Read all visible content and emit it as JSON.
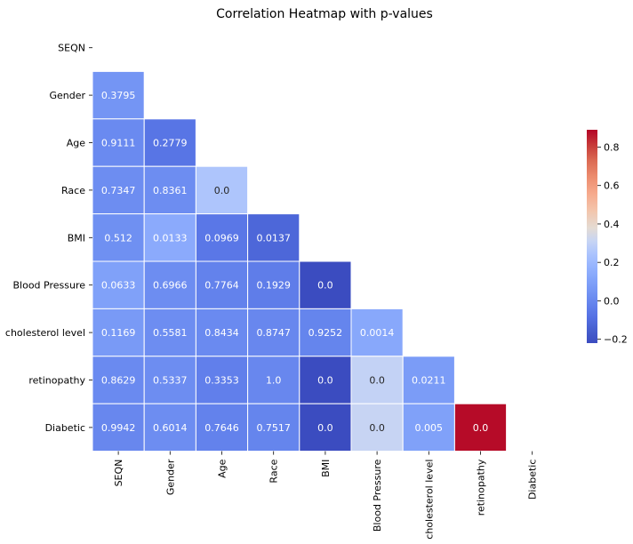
{
  "chart_data": {
    "type": "heatmap",
    "title": "Correlation Heatmap with p-values",
    "xlabel": "",
    "ylabel": "",
    "categories": [
      "SEQN",
      "Gender",
      "Age",
      "Race",
      "BMI",
      "Blood Pressure",
      "cholesterol level",
      "retinopathy",
      "Diabetic"
    ],
    "mask": "upper-triangle-and-diagonal",
    "cells": [
      {
        "row": 1,
        "col": 0,
        "value": 0.05,
        "label": "0.3795"
      },
      {
        "row": 2,
        "col": 0,
        "value": 0.01,
        "label": "0.9111"
      },
      {
        "row": 2,
        "col": 1,
        "value": -0.07,
        "label": "0.2779"
      },
      {
        "row": 3,
        "col": 0,
        "value": 0.02,
        "label": "0.7347"
      },
      {
        "row": 3,
        "col": 1,
        "value": 0.02,
        "label": "0.8361"
      },
      {
        "row": 3,
        "col": 2,
        "value": 0.25,
        "label": "0.0"
      },
      {
        "row": 4,
        "col": 0,
        "value": 0.03,
        "label": "0.512"
      },
      {
        "row": 4,
        "col": 1,
        "value": 0.14,
        "label": "0.0133"
      },
      {
        "row": 4,
        "col": 2,
        "value": -0.06,
        "label": "0.0969"
      },
      {
        "row": 4,
        "col": 3,
        "value": -0.12,
        "label": "0.0137"
      },
      {
        "row": 5,
        "col": 0,
        "value": 0.1,
        "label": "0.0633"
      },
      {
        "row": 5,
        "col": 1,
        "value": 0.02,
        "label": "0.6966"
      },
      {
        "row": 5,
        "col": 2,
        "value": -0.02,
        "label": "0.7764"
      },
      {
        "row": 5,
        "col": 3,
        "value": -0.04,
        "label": "0.1929"
      },
      {
        "row": 5,
        "col": 4,
        "value": -0.22,
        "label": "0.0"
      },
      {
        "row": 6,
        "col": 0,
        "value": 0.07,
        "label": "0.1169"
      },
      {
        "row": 6,
        "col": 1,
        "value": 0.02,
        "label": "0.5581"
      },
      {
        "row": 6,
        "col": 2,
        "value": 0.01,
        "label": "0.8434"
      },
      {
        "row": 6,
        "col": 3,
        "value": 0.0,
        "label": "0.8747"
      },
      {
        "row": 6,
        "col": 4,
        "value": -0.01,
        "label": "0.9252"
      },
      {
        "row": 6,
        "col": 5,
        "value": 0.13,
        "label": "0.0014"
      },
      {
        "row": 7,
        "col": 0,
        "value": 0.01,
        "label": "0.8629"
      },
      {
        "row": 7,
        "col": 1,
        "value": 0.02,
        "label": "0.5337"
      },
      {
        "row": 7,
        "col": 2,
        "value": -0.03,
        "label": "0.3353"
      },
      {
        "row": 7,
        "col": 3,
        "value": 0.0,
        "label": "1.0"
      },
      {
        "row": 7,
        "col": 4,
        "value": -0.22,
        "label": "0.0"
      },
      {
        "row": 7,
        "col": 5,
        "value": 0.3,
        "label": "0.0"
      },
      {
        "row": 7,
        "col": 6,
        "value": 0.08,
        "label": "0.0211"
      },
      {
        "row": 8,
        "col": 0,
        "value": 0.0,
        "label": "0.9942"
      },
      {
        "row": 8,
        "col": 1,
        "value": 0.02,
        "label": "0.6014"
      },
      {
        "row": 8,
        "col": 2,
        "value": -0.02,
        "label": "0.7646"
      },
      {
        "row": 8,
        "col": 3,
        "value": -0.01,
        "label": "0.7517"
      },
      {
        "row": 8,
        "col": 4,
        "value": -0.22,
        "label": "0.0"
      },
      {
        "row": 8,
        "col": 5,
        "value": 0.31,
        "label": "0.0"
      },
      {
        "row": 8,
        "col": 6,
        "value": 0.1,
        "label": "0.005"
      },
      {
        "row": 8,
        "col": 7,
        "value": 0.88,
        "label": "0.0"
      }
    ],
    "colorbar": {
      "colormap": "coolwarm",
      "vmin": -0.22,
      "vmax": 0.89,
      "ticks": [
        -0.2,
        0.0,
        0.2,
        0.4,
        0.6,
        0.8
      ],
      "tick_labels": [
        "−0.2",
        "0.0",
        "0.2",
        "0.4",
        "0.6",
        "0.8"
      ]
    },
    "grid": false,
    "legend": "colorbar-right"
  }
}
